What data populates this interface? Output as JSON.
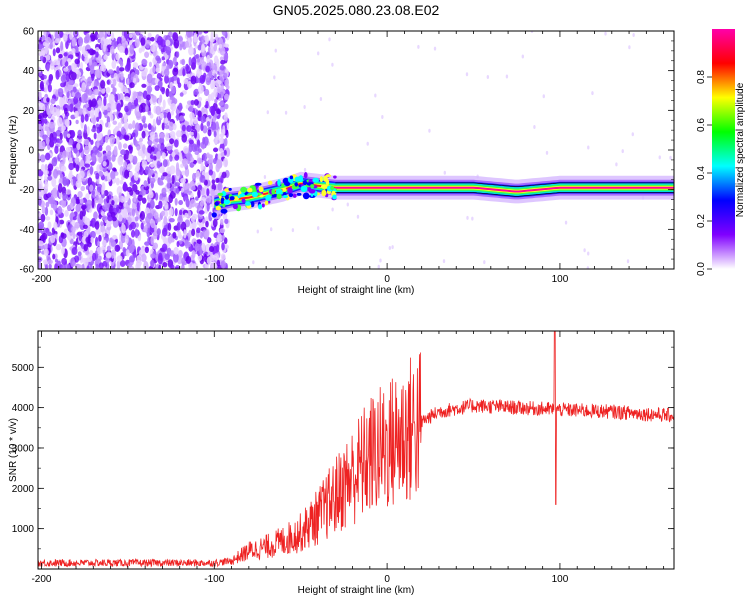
{
  "title": "GN05.2025.080.23.08.E02",
  "chart_data": [
    {
      "type": "heatmap",
      "title": "GN05.2025.080.23.08.E02",
      "xlabel": "Height of straight line (km)",
      "ylabel": "Frequency (Hz)",
      "xlim": [
        -202,
        166
      ],
      "ylim": [
        -60,
        60
      ],
      "xticks": [
        -200,
        -100,
        0,
        100
      ],
      "yticks": [
        -60,
        -40,
        -20,
        0,
        20,
        40,
        60
      ],
      "colorbar": {
        "label": "Normalized spectral amplitude",
        "range": [
          0.0,
          1.0
        ],
        "ticks": [
          0.0,
          0.2,
          0.4,
          0.6,
          0.8
        ],
        "tick_labels": [
          "0.0",
          "0.2",
          "0.4",
          "0.6",
          "0.8"
        ],
        "colormap": [
          "#ffffff",
          "#8000ff",
          "#0000ff",
          "#00ffff",
          "#00ff00",
          "#ffff00",
          "#ff0000",
          "#ff00aa"
        ]
      },
      "noise_region_x": [
        -202,
        -92
      ],
      "signal_track": [
        {
          "x": -100,
          "y": -27
        },
        {
          "x": -90,
          "y": -25
        },
        {
          "x": -80,
          "y": -24
        },
        {
          "x": -70,
          "y": -22
        },
        {
          "x": -60,
          "y": -20
        },
        {
          "x": -50,
          "y": -17
        },
        {
          "x": -40,
          "y": -18
        },
        {
          "x": -30,
          "y": -19
        },
        {
          "x": -20,
          "y": -19
        },
        {
          "x": 0,
          "y": -19
        },
        {
          "x": 50,
          "y": -19
        },
        {
          "x": 75,
          "y": -21
        },
        {
          "x": 100,
          "y": -19
        },
        {
          "x": 130,
          "y": -19
        },
        {
          "x": 166,
          "y": -19
        }
      ],
      "grid": false
    },
    {
      "type": "line",
      "xlabel": "Height of straight line (km)",
      "ylabel": "SNR (10 * v/v)",
      "xlim": [
        -202,
        166
      ],
      "ylim": [
        0,
        5900
      ],
      "xticks": [
        -200,
        -100,
        0,
        100
      ],
      "yticks": [
        1000,
        2000,
        3000,
        4000,
        5000
      ],
      "series_color": "#ee2222",
      "envelope": [
        {
          "x": -202,
          "y": 150
        },
        {
          "x": -100,
          "y": 150
        },
        {
          "x": -90,
          "y": 200
        },
        {
          "x": -80,
          "y": 450
        },
        {
          "x": -70,
          "y": 550
        },
        {
          "x": -60,
          "y": 700
        },
        {
          "x": -50,
          "y": 900
        },
        {
          "x": -40,
          "y": 1300
        },
        {
          "x": -30,
          "y": 1800
        },
        {
          "x": -20,
          "y": 2300
        },
        {
          "x": -10,
          "y": 2800
        },
        {
          "x": 0,
          "y": 3050
        },
        {
          "x": 10,
          "y": 3350
        },
        {
          "x": 20,
          "y": 3650
        },
        {
          "x": 30,
          "y": 3900
        },
        {
          "x": 50,
          "y": 4050
        },
        {
          "x": 75,
          "y": 4000
        },
        {
          "x": 100,
          "y": 3950
        },
        {
          "x": 130,
          "y": 3900
        },
        {
          "x": 166,
          "y": 3800
        }
      ],
      "spike": {
        "x": 97,
        "high": 5900,
        "low": 1600
      },
      "grid": false
    }
  ]
}
